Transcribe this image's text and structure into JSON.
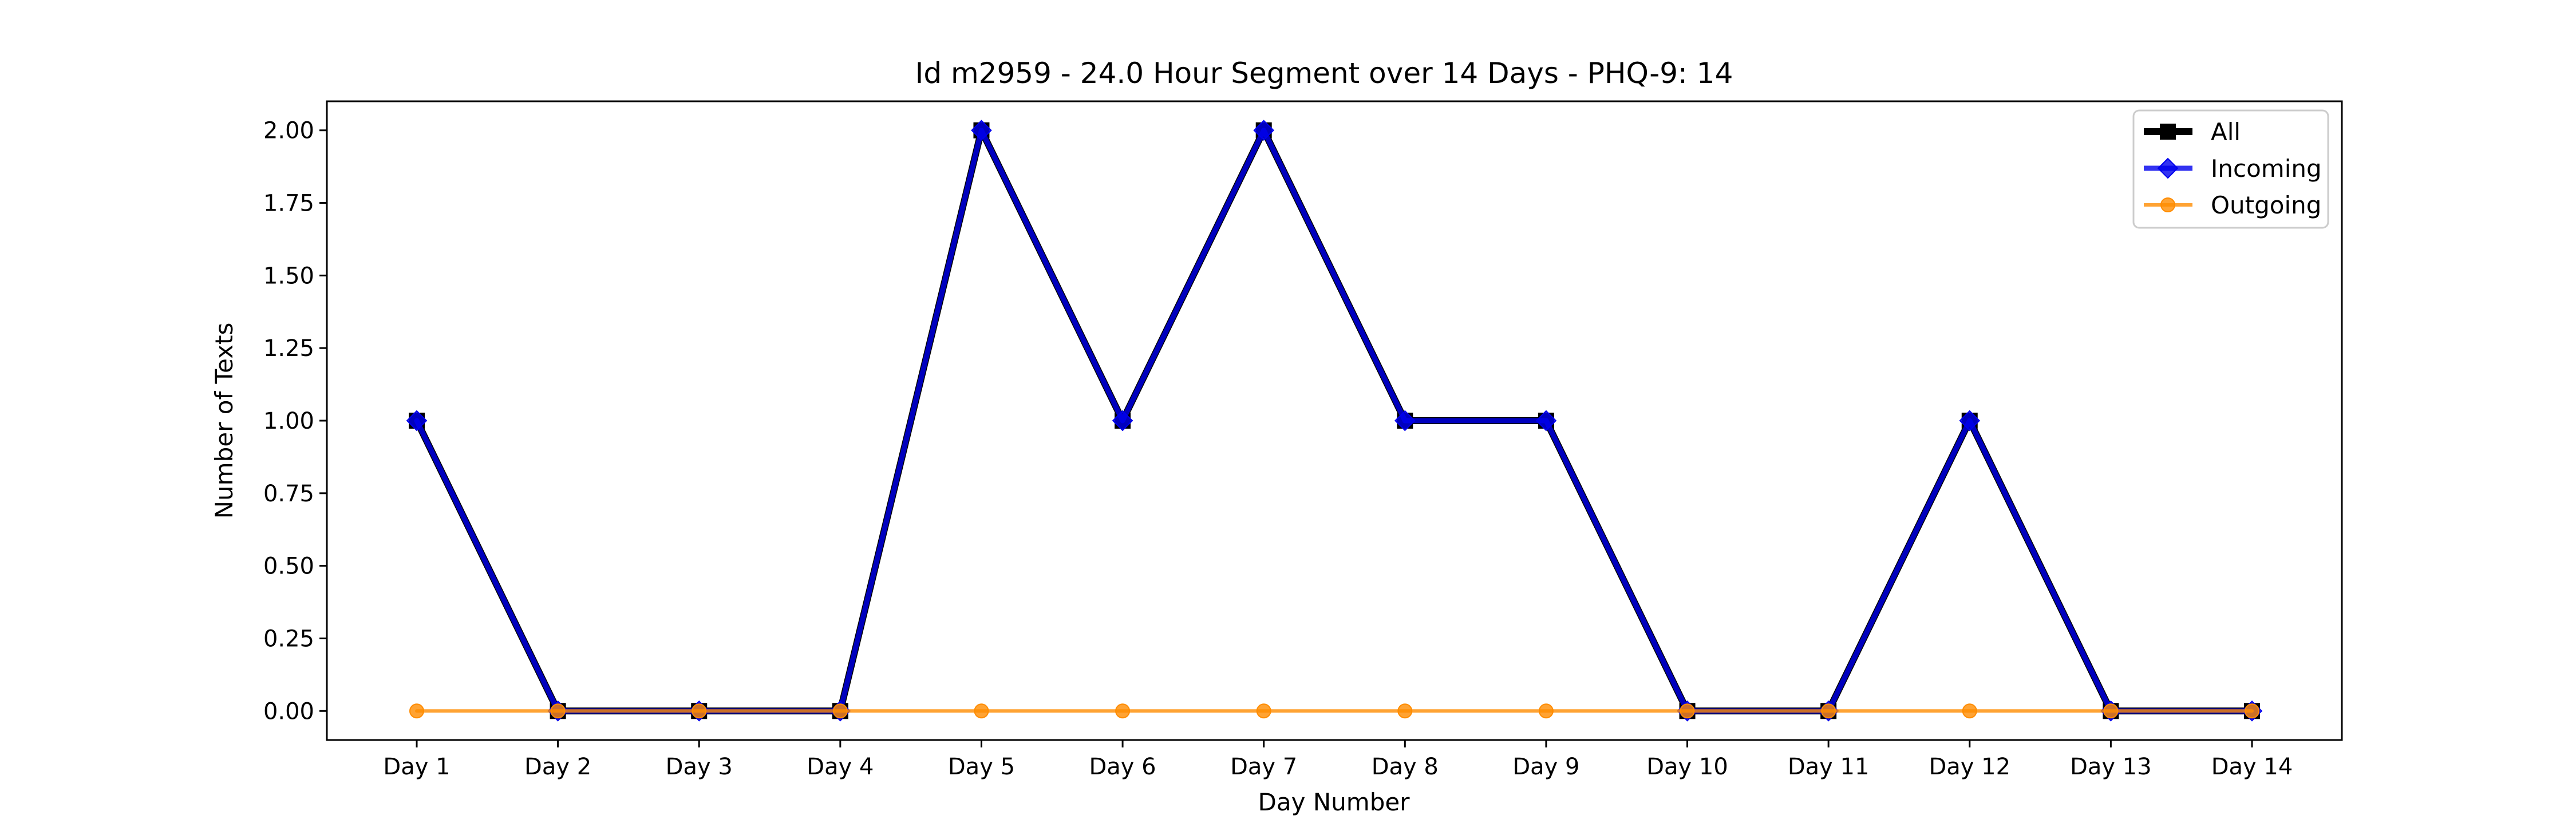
{
  "chart_data": {
    "type": "line",
    "title": "Id m2959 - 24.0 Hour Segment over 14 Days - PHQ-9: 14",
    "xlabel": "Day Number",
    "ylabel": "Number of Texts",
    "categories": [
      "Day 1",
      "Day 2",
      "Day 3",
      "Day 4",
      "Day 5",
      "Day 6",
      "Day 7",
      "Day 8",
      "Day 9",
      "Day 10",
      "Day 11",
      "Day 12",
      "Day 13",
      "Day 14"
    ],
    "ylim": [
      -0.1,
      2.1
    ],
    "yticks": [
      "0.00",
      "0.25",
      "0.50",
      "0.75",
      "1.00",
      "1.25",
      "1.50",
      "1.75",
      "2.00"
    ],
    "grid": false,
    "legend_position": "top-right",
    "series": [
      {
        "name": "All",
        "values": [
          1,
          0,
          0,
          0,
          2,
          1,
          2,
          1,
          1,
          0,
          0,
          1,
          0,
          0
        ],
        "color": "#000000",
        "marker": "square"
      },
      {
        "name": "Incoming",
        "values": [
          1,
          0,
          0,
          0,
          2,
          1,
          2,
          1,
          1,
          0,
          0,
          1,
          0,
          0
        ],
        "color": "#0000ee",
        "marker": "diamond"
      },
      {
        "name": "Outgoing",
        "values": [
          0,
          0,
          0,
          0,
          0,
          0,
          0,
          0,
          0,
          0,
          0,
          0,
          0,
          0
        ],
        "color": "#ff8c00",
        "marker": "circle"
      }
    ]
  }
}
